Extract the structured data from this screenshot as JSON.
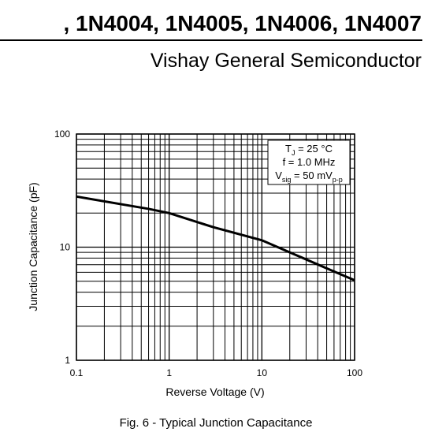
{
  "header": {
    "title": ", 1N4004, 1N4005, 1N4006, 1N4007",
    "company": "Vishay General Semiconductor"
  },
  "chart_data": {
    "type": "line",
    "log_x": true,
    "log_y": true,
    "grid": true,
    "xlabel": "Reverse Voltage (V)",
    "ylabel": "Junction Capacitance (pF)",
    "caption": "Fig. 6 - Typical Junction Capacitance",
    "xlim": [
      0.1,
      100
    ],
    "ylim": [
      1,
      100
    ],
    "xticks": [
      0.1,
      1,
      10,
      100
    ],
    "yticks": [
      1,
      10,
      100
    ],
    "minor_xticks": [
      0.2,
      0.3,
      0.4,
      0.5,
      0.6,
      0.7,
      0.8,
      0.9,
      2,
      3,
      4,
      5,
      6,
      7,
      8,
      9,
      20,
      30,
      40,
      50,
      60,
      70,
      80,
      90
    ],
    "minor_yticks": [
      2,
      3,
      4,
      5,
      6,
      7,
      8,
      9,
      20,
      30,
      40,
      50,
      60,
      70,
      80,
      90
    ],
    "series": [
      {
        "color": "#000000",
        "x": [
          0.1,
          0.3,
          0.6,
          1,
          3,
          10,
          20,
          50,
          100
        ],
        "values": [
          28,
          24,
          21.8,
          20,
          15,
          11.5,
          9,
          6.5,
          5.1
        ]
      }
    ],
    "annotations": [
      [
        "T",
        "J",
        " = 25 °C"
      ],
      [
        "f = 1.0 MHz"
      ],
      [
        "V",
        "sig",
        " = 50 mV",
        "p-p"
      ]
    ]
  }
}
